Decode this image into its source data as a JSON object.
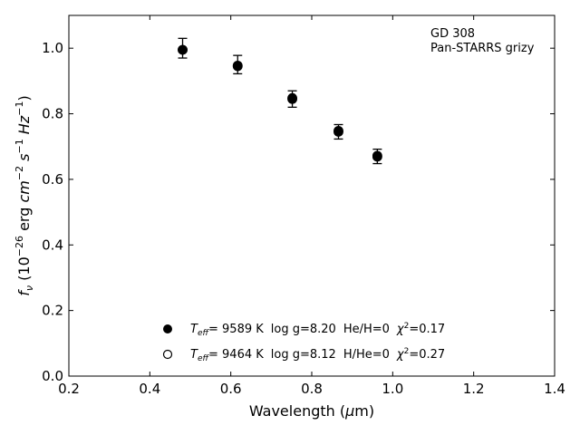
{
  "chart_data": {
    "type": "scatter",
    "title": "",
    "xlabel_main": "Wavelength (",
    "xlabel_unit": "μ",
    "xlabel_tail": "m)",
    "ylabel_f": "f",
    "ylabel_nu": "ν",
    "ylabel_open": " (10",
    "ylabel_exp1": "−26",
    "ylabel_erg": " erg ",
    "ylabel_cm": "cm",
    "ylabel_exp2": "−2",
    "ylabel_s": " s",
    "ylabel_exp3": "−1",
    "ylabel_hz": " Hz",
    "ylabel_exp4": "−1",
    "ylabel_close": ")",
    "xlim": [
      0.2,
      1.4
    ],
    "ylim": [
      0.0,
      1.1
    ],
    "xticks": [
      0.2,
      0.4,
      0.6,
      0.8,
      1.0,
      1.2,
      1.4
    ],
    "xtick_labels": [
      "0.2",
      "0.4",
      "0.6",
      "0.8",
      "1.0",
      "1.2",
      "1.4"
    ],
    "yticks": [
      0.0,
      0.2,
      0.4,
      0.6,
      0.8,
      1.0
    ],
    "ytick_labels": [
      "0.0",
      "0.2",
      "0.4",
      "0.6",
      "0.8",
      "1.0"
    ],
    "grid": false,
    "legend_position": "bottom-center",
    "annotation_lines": [
      "GD 308",
      "Pan-STARRS grizy"
    ],
    "observed": {
      "x": [
        0.481,
        0.617,
        0.752,
        0.866,
        0.962
      ],
      "y": [
        1.0,
        0.95,
        0.845,
        0.745,
        0.67
      ],
      "err": [
        0.03,
        0.028,
        0.025,
        0.022,
        0.022
      ]
    },
    "series": [
      {
        "marker": "filled",
        "x": [
          0.481,
          0.617,
          0.752,
          0.866,
          0.962
        ],
        "y": [
          0.995,
          0.945,
          0.848,
          0.748,
          0.672
        ],
        "legend": {
          "t": "T",
          "eff": "eff",
          "teff_value": "=  9589 K",
          "logg": "log g=8.20",
          "comp": "He/H=0",
          "chi": "χ",
          "chi_exp": "2",
          "chi_value": "=0.17"
        }
      },
      {
        "marker": "open",
        "x": [
          0.481,
          0.617,
          0.752,
          0.866,
          0.962
        ],
        "y": [
          0.995,
          0.947,
          0.845,
          0.745,
          0.669
        ],
        "legend": {
          "t": "T",
          "eff": "eff",
          "teff_value": "=  9464 K",
          "logg": "log g=8.12",
          "comp": "H/He=0",
          "chi": "χ",
          "chi_exp": "2",
          "chi_value": "=0.27"
        }
      }
    ]
  }
}
